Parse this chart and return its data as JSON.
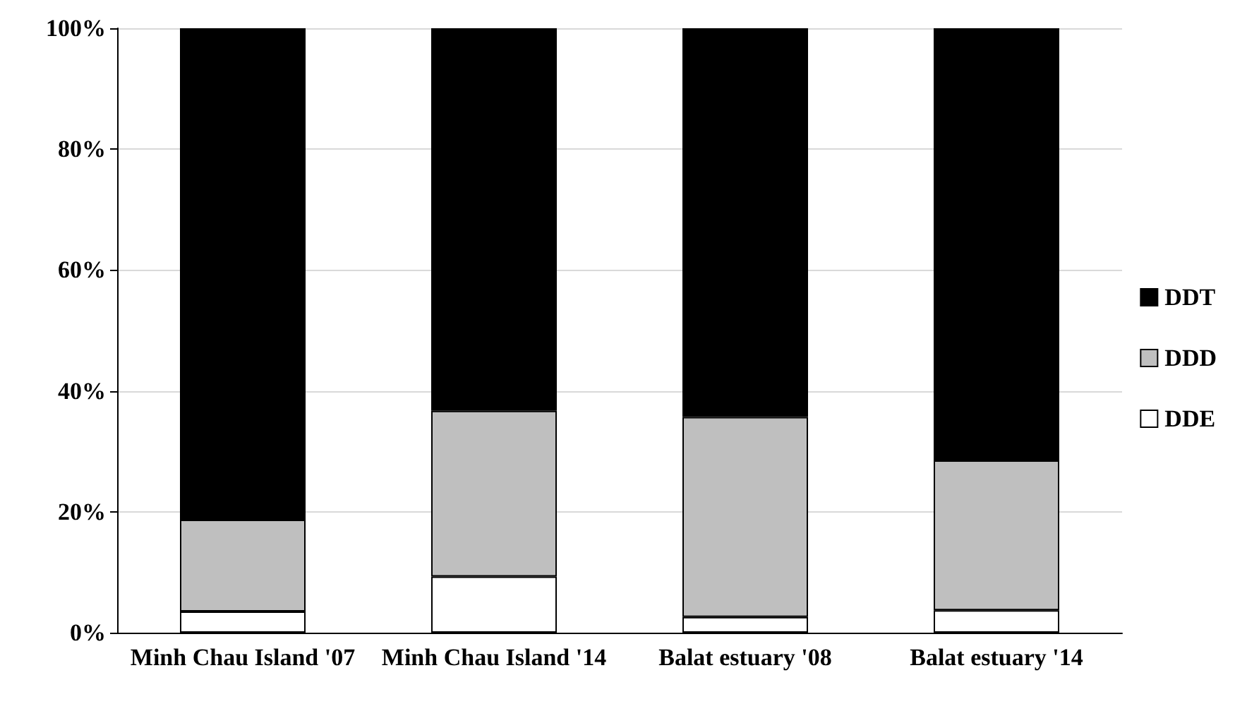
{
  "chart_data": {
    "type": "bar",
    "stacked": true,
    "categories": [
      "Minh Chau Island '07",
      "Minh Chau Island '14",
      "Balat estuary '08",
      "Balat estuary '14"
    ],
    "series": [
      {
        "name": "DDE",
        "color": "#ffffff",
        "values": [
          3.5,
          9.3,
          2.6,
          3.7
        ]
      },
      {
        "name": "DDD",
        "color": "#bfbfbf",
        "values": [
          15.2,
          27.4,
          33.1,
          24.8
        ]
      },
      {
        "name": "DDT",
        "color": "#000000",
        "values": [
          81.3,
          63.3,
          64.3,
          71.5
        ]
      }
    ],
    "ylim": [
      0,
      100
    ],
    "yticks": [
      {
        "value": 0,
        "label": "0%"
      },
      {
        "value": 20,
        "label": "20%"
      },
      {
        "value": 40,
        "label": "40%"
      },
      {
        "value": 60,
        "label": "60%"
      },
      {
        "value": 80,
        "label": "80%"
      },
      {
        "value": 100,
        "label": "100%"
      }
    ],
    "grid": "y",
    "legend": "right"
  }
}
